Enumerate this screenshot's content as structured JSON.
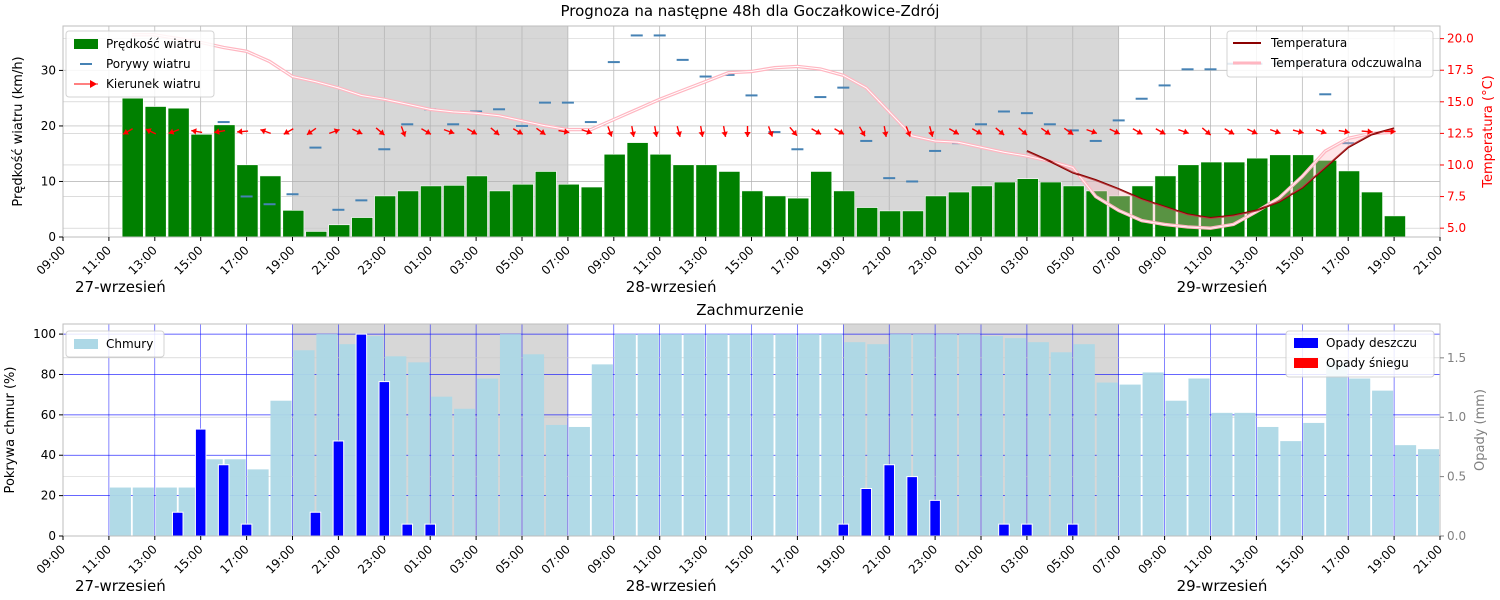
{
  "chart_data": [
    {
      "type": "bar",
      "title": "Prognoza na następne 48h dla Goczałkowice-Zdrój",
      "ylabel": "Prędkość wiatru (km/h)",
      "ylabel_right": "Temperatura (°C)",
      "ylim": [
        0,
        38
      ],
      "ylim_right": [
        4.3,
        21.0
      ],
      "yticks": [
        0,
        10,
        20,
        30
      ],
      "yticks_right": [
        5.0,
        7.5,
        10.0,
        12.5,
        15.0,
        17.5,
        20.0
      ],
      "hour_start": 9,
      "hour_end": 21,
      "x_tick_labels": [
        "09:00",
        "11:00",
        "13:00",
        "15:00",
        "17:00",
        "19:00",
        "21:00",
        "23:00",
        "01:00",
        "03:00",
        "05:00",
        "07:00",
        "09:00",
        "11:00",
        "13:00",
        "15:00",
        "17:00",
        "19:00",
        "21:00",
        "23:00",
        "01:00",
        "03:00",
        "05:00",
        "07:00",
        "09:00",
        "11:00",
        "13:00",
        "15:00",
        "17:00",
        "19:00",
        "21:00"
      ],
      "day_labels": [
        {
          "text": "27-wrzesień",
          "hour": 11.5
        },
        {
          "text": "28-wrzesień",
          "hour": 35.5
        },
        {
          "text": "29-wrzesień",
          "hour": 59.5
        }
      ],
      "night_spans": [
        [
          19,
          31
        ],
        [
          43,
          55
        ]
      ],
      "legend_left": [
        "Prędkość wiatru",
        "Porywy wiatru",
        "Kierunek wiatru"
      ],
      "legend_right": [
        "Temperatura",
        "Temperatura odczuwalna"
      ],
      "colors": {
        "wind": "#008000",
        "gust": "#4682b4",
        "arrow": "#ff0000",
        "temp": "#8b0000",
        "feels": "#ffb6c1",
        "night": "#d3d3d3"
      },
      "wind_speed": [
        25,
        23.5,
        23.2,
        18.5,
        20.2,
        13,
        11,
        4.8,
        1,
        2.2,
        3.5,
        7.4,
        8.3,
        9.2,
        9.3,
        11,
        8.3,
        9.5,
        11.8,
        9.5,
        9,
        14.9,
        17,
        14.9,
        13,
        13,
        11.8,
        8.3,
        7.4,
        7,
        11.8,
        8.3,
        5.3,
        4.7,
        4.7,
        7.4,
        8.1,
        9.2,
        9.9,
        10.5,
        9.9,
        9.2,
        8.3,
        7.4,
        9.2,
        11,
        13,
        13.5,
        13.5,
        14.2,
        14.8,
        14.8,
        13.8,
        11.9,
        8.1,
        3.8
      ],
      "gusts": [
        null,
        null,
        null,
        null,
        20.7,
        7.3,
        5.9,
        7.7,
        16.1,
        4.9,
        6.6,
        15.8,
        20.3,
        23.0,
        20.3,
        22.6,
        23.0,
        20.0,
        24.2,
        24.2,
        20.7,
        31.5,
        36.3,
        36.3,
        31.9,
        28.9,
        29.2,
        25.5,
        18.9,
        15.8,
        25.2,
        26.9,
        17.3,
        10.6,
        10.0,
        15.5,
        16.9,
        20.3,
        22.6,
        22.3,
        20.3,
        19.2,
        17.3,
        21.0,
        24.9,
        27.3,
        30.2,
        30.2,
        31.2,
        31.2,
        31.2,
        31.2,
        25.7,
        16.9
      ],
      "wind_dir_arrow_angle_deg": [
        150,
        205,
        160,
        190,
        170,
        175,
        200,
        150,
        145,
        -20,
        25,
        40,
        70,
        30,
        20,
        30,
        40,
        30,
        35,
        10,
        20,
        70,
        80,
        80,
        75,
        80,
        80,
        90,
        70,
        50,
        30,
        30,
        60,
        80,
        70,
        75,
        30,
        30,
        40,
        40,
        35,
        35,
        20,
        25,
        30,
        30,
        20,
        40,
        30,
        25,
        20,
        15,
        20,
        10,
        5,
        0
      ],
      "temperature": [
        null,
        null,
        null,
        null,
        null,
        null,
        null,
        null,
        null,
        null,
        null,
        null,
        null,
        null,
        null,
        null,
        null,
        null,
        null,
        null,
        null,
        null,
        null,
        null,
        null,
        null,
        null,
        null,
        null,
        null,
        null,
        null,
        null,
        null,
        null,
        null,
        null,
        null,
        null,
        11.1,
        10.3,
        9.4,
        8.8,
        8.1,
        7.3,
        6.7,
        6.1,
        5.8,
        6.0,
        6.4,
        7.1,
        8.2,
        9.8,
        11.4,
        12.4,
        12.9
      ],
      "apparent_temperature": [
        20.3,
        20.3,
        20.0,
        19.7,
        19.3,
        19.0,
        18.2,
        17.0,
        16.6,
        16.1,
        15.5,
        15.2,
        14.8,
        14.4,
        14.2,
        14.1,
        13.9,
        13.5,
        13.1,
        12.8,
        12.8,
        13.6,
        14.4,
        15.2,
        15.9,
        16.6,
        17.3,
        17.4,
        17.7,
        17.8,
        17.6,
        17.1,
        16.1,
        14.2,
        12.3,
        11.9,
        11.8,
        11.4,
        11.0,
        10.7,
        10.3,
        9.8,
        7.5,
        6.4,
        5.6,
        5.3,
        5.1,
        5.0,
        5.3,
        6.3,
        7.4,
        9.1,
        11.1,
        12.1,
        12.5,
        12.6
      ]
    },
    {
      "type": "bar",
      "title": "Zachmurzenie",
      "ylabel": "Pokrywa chmur (%)",
      "ylabel_right": "Opady (mm)",
      "ylim": [
        0,
        105
      ],
      "ylim_right": [
        0,
        1.785
      ],
      "yticks": [
        0,
        20,
        40,
        60,
        80,
        100
      ],
      "yticks_right": [
        0.0,
        0.5,
        1.0,
        1.5
      ],
      "legend_left": [
        "Chmury"
      ],
      "legend_right": [
        "Opady deszczu",
        "Opady śniegu"
      ],
      "colors": {
        "clouds": "#add8e6",
        "rain": "#0000ff",
        "snow": "#ff0000",
        "grid": "#0000ff"
      },
      "cloud_cover": [
        24,
        24,
        24,
        24,
        38,
        38,
        33,
        67,
        92,
        100,
        95,
        99,
        89,
        86,
        69,
        63,
        78,
        100,
        90,
        55,
        54,
        85,
        100,
        100,
        100,
        100,
        100,
        100,
        100,
        100,
        100,
        100,
        96,
        95,
        100,
        100,
        100,
        100,
        99,
        98,
        96,
        91,
        95,
        76,
        75,
        81,
        67,
        78,
        61,
        61,
        54,
        47,
        56,
        86,
        78,
        72,
        45,
        43
      ],
      "cloud_start_hour": 11.5,
      "rain": [
        0.2,
        0.9,
        0.6,
        0.1,
        0.2,
        0.8,
        1.7,
        1.3,
        0.1,
        0.1,
        0.1,
        0.4,
        0.6,
        0.5,
        0.3,
        0.1,
        0.1,
        0.1
      ],
      "rain_hours": [
        14,
        15,
        16,
        17,
        20,
        21,
        22,
        23,
        24,
        25,
        43,
        44,
        45,
        46,
        47,
        50,
        51,
        53
      ],
      "snow": []
    }
  ]
}
